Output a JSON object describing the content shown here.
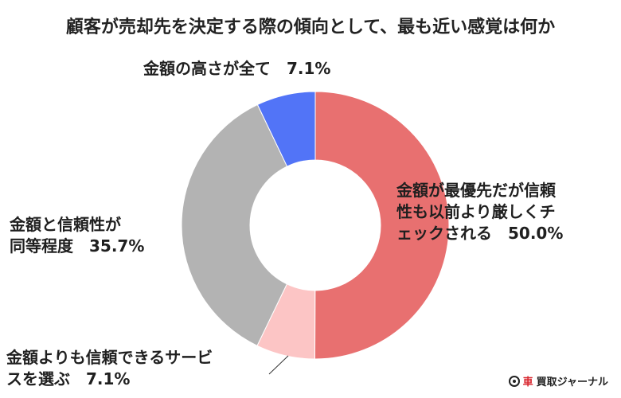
{
  "chart_data": {
    "type": "pie",
    "title": "顧客が売却先を決定する際の傾向として、最も近い感覚は何か",
    "slices": [
      {
        "label_lines": [
          "金額が最優先だが信頼",
          "性も以前より厳しくチ",
          "ェックされる　50.0%"
        ],
        "value": 50.0,
        "color": "#e87070"
      },
      {
        "label_lines": [
          "金額よりも信頼できるサービ",
          "スを選ぶ　7.1%"
        ],
        "value": 7.1,
        "color": "#fcc5c5"
      },
      {
        "label_lines": [
          "金額と信頼性が",
          "同等程度　35.7%"
        ],
        "value": 35.7,
        "color": "#b3b3b3"
      },
      {
        "label_lines": [
          "金額の高さが全て　7.1%"
        ],
        "value": 7.1,
        "color": "#5274f7"
      }
    ]
  },
  "logo": {
    "accent": "車",
    "text": "買取ジャーナル"
  }
}
